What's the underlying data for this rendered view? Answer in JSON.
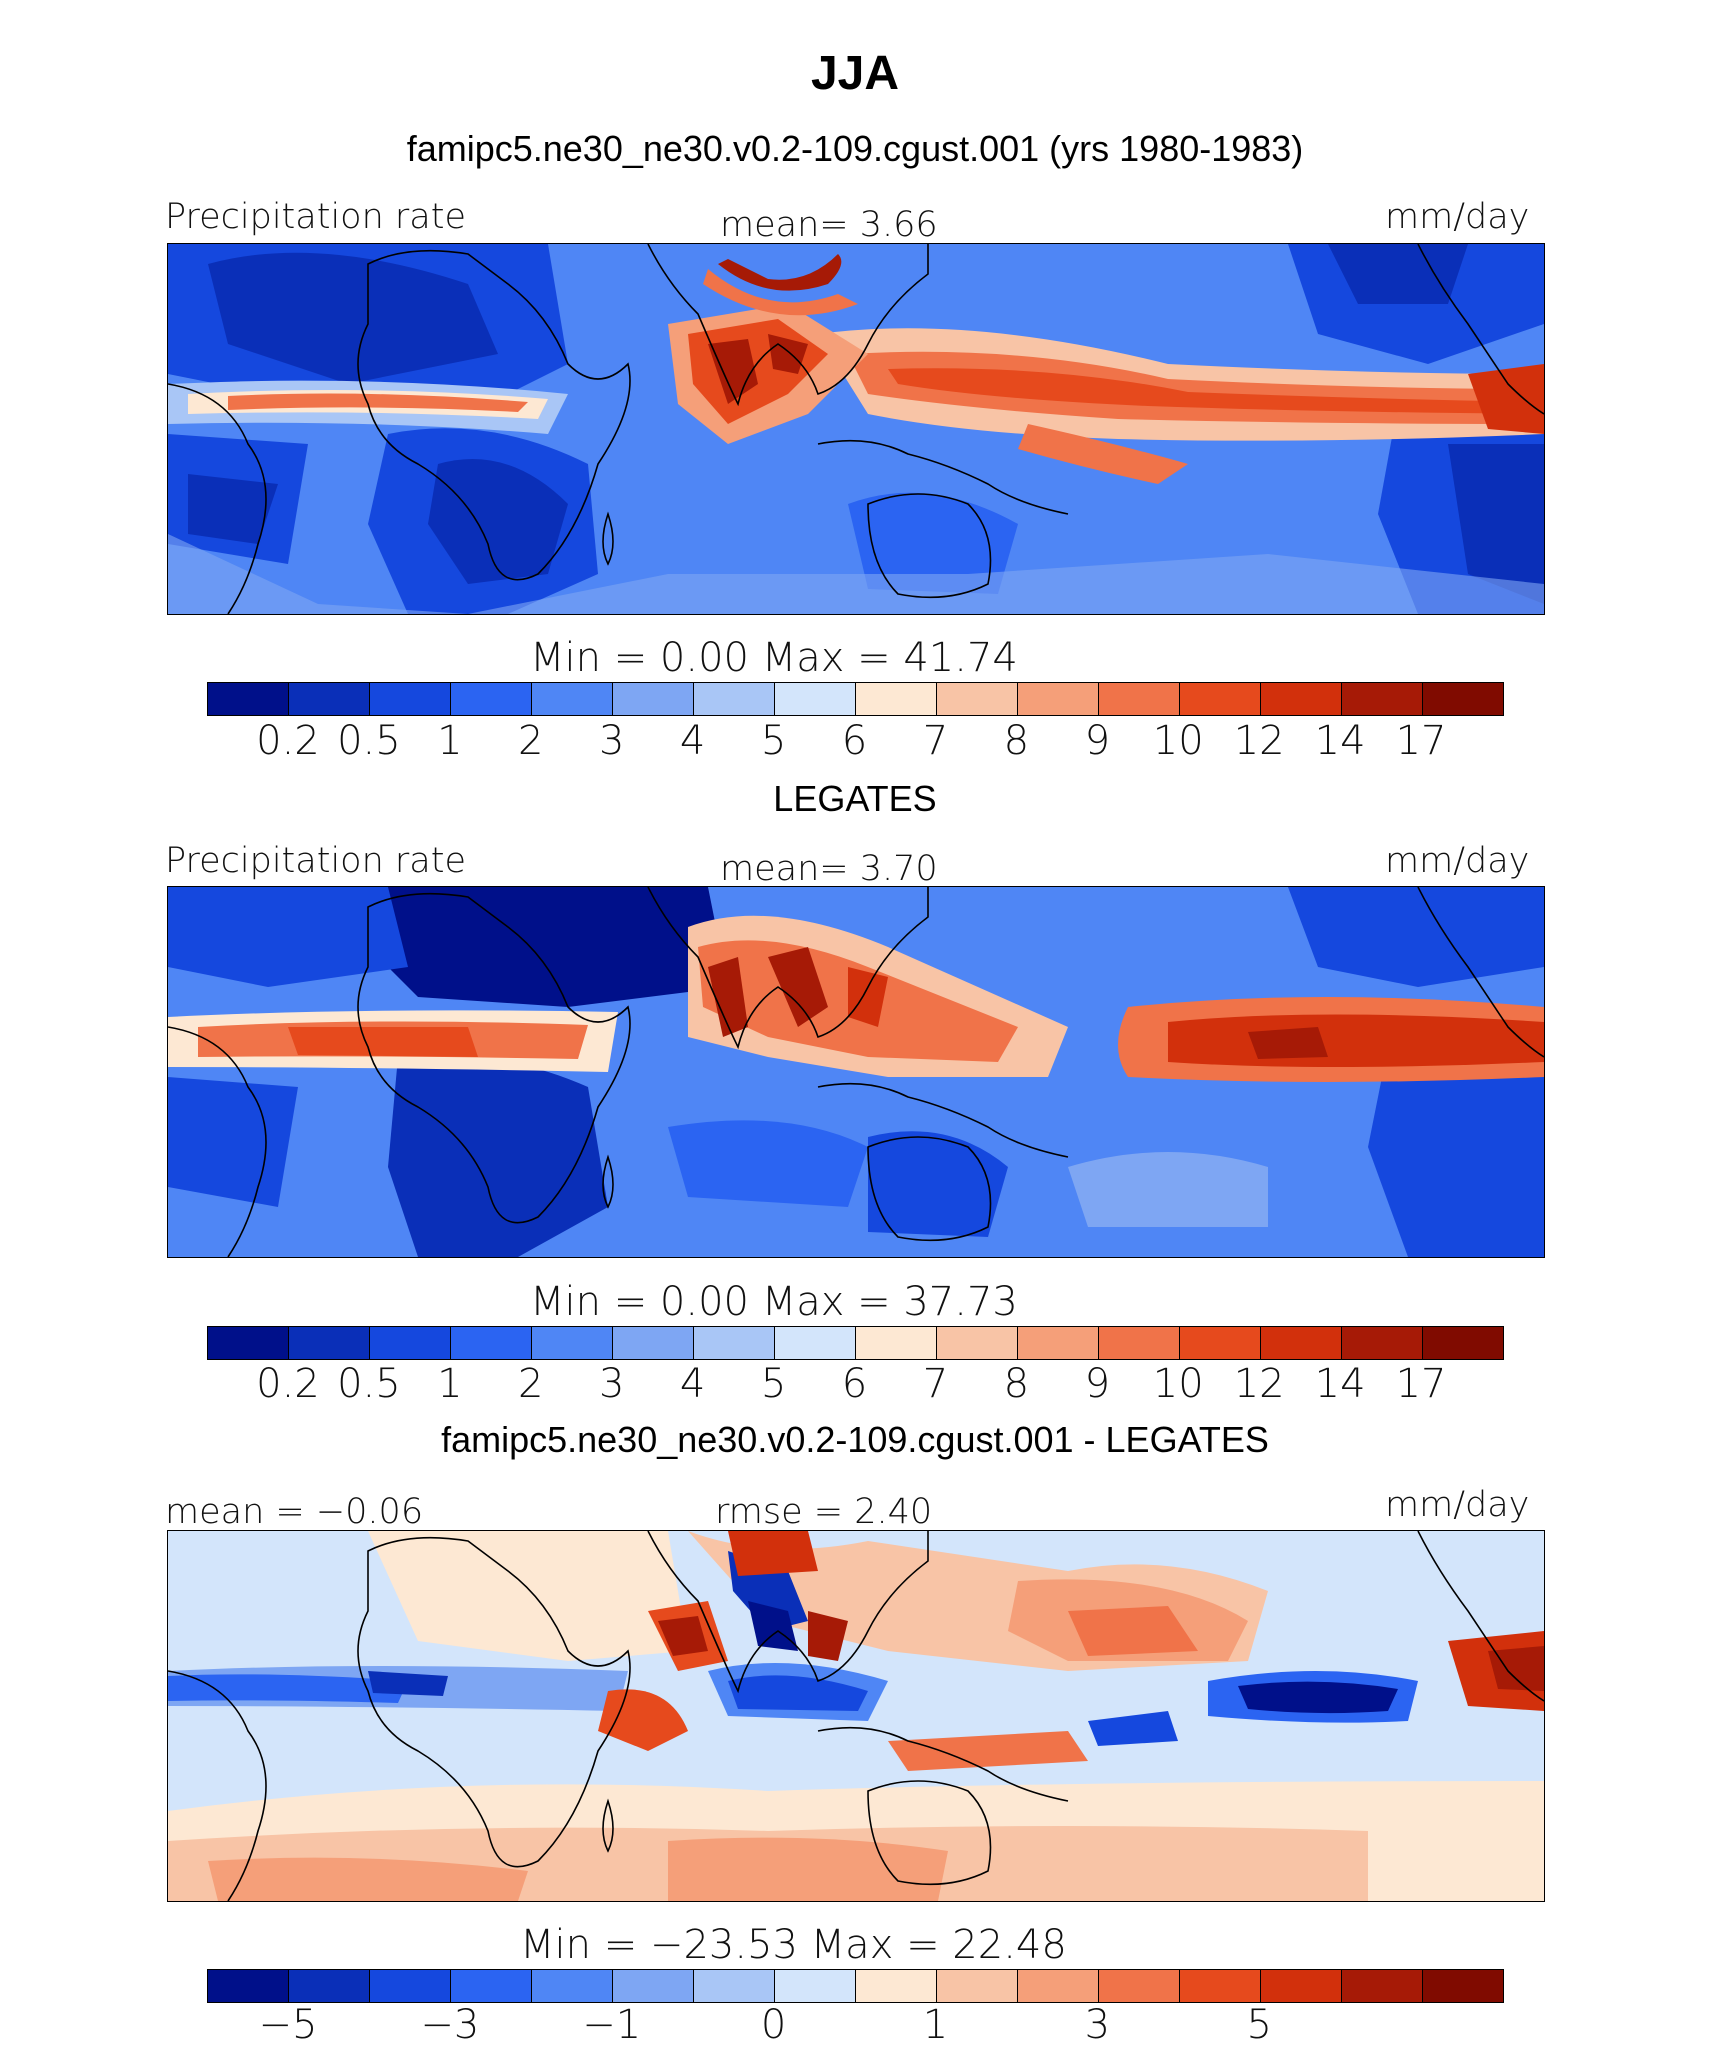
{
  "header": {
    "title": "JJA",
    "subtitle": "famipc5.ne30_ne30.v0.2-109.cgust.001 (yrs 1980-1983)"
  },
  "panels": [
    {
      "label_left": "Precipitation  rate",
      "label_center": "mean=    3.66",
      "units": "mm/day",
      "minmax": "Min  =     0.00  Max  =    41.74",
      "title_below": "LEGATES"
    },
    {
      "label_left": "Precipitation  rate",
      "label_center": "mean=    3.70",
      "units": "mm/day",
      "minmax": "Min  =     0.00  Max  =    37.73",
      "title_below": "famipc5.ne30_ne30.v0.2-109.cgust.001 - LEGATES"
    },
    {
      "label_left": "mean  =   −0.06",
      "label_center": "rmse  =    2.40",
      "units": "mm/day",
      "minmax": "Min  =  −23.53  Max  =    22.48",
      "title_below": ""
    }
  ],
  "colorbar_abs": {
    "colors": [
      "#00108a",
      "#0a2fb8",
      "#1548de",
      "#2b64f2",
      "#4f86f5",
      "#7ea6f3",
      "#a9c6f6",
      "#d3e5fb",
      "#fde8d3",
      "#f8c4a6",
      "#f59f79",
      "#f07349",
      "#e64a1d",
      "#d2300c",
      "#a61a06",
      "#800b00"
    ],
    "tick_labels": [
      "0.2",
      "0.5",
      "1",
      "2",
      "3",
      "4",
      "5",
      "6",
      "7",
      "8",
      "9",
      "10",
      "12",
      "14",
      "17"
    ]
  },
  "colorbar_diff": {
    "colors": [
      "#00108a",
      "#0a2fb8",
      "#1548de",
      "#2b64f2",
      "#4f86f5",
      "#7ea6f3",
      "#a9c6f6",
      "#d3e5fb",
      "#fde8d3",
      "#f8c4a6",
      "#f59f79",
      "#f07349",
      "#e64a1d",
      "#d2300c",
      "#a61a06",
      "#800b00"
    ],
    "tick_labels": [
      "−5",
      "",
      "−3",
      "",
      "−1",
      "",
      "0",
      "",
      "1",
      "",
      "3",
      "",
      "5",
      "",
      ""
    ]
  }
}
